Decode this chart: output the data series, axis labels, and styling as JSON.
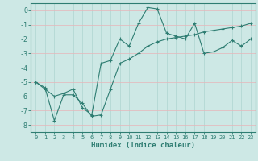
{
  "xlabel": "Humidex (Indice chaleur)",
  "background_color": "#cde8e5",
  "grid_color_h": "#e8b4b8",
  "grid_color_v": "#aed4d0",
  "line_color": "#2e7d72",
  "tick_color": "#2e7d72",
  "xlim": [
    -0.5,
    23.5
  ],
  "ylim": [
    -8.5,
    0.5
  ],
  "xticks": [
    0,
    1,
    2,
    3,
    4,
    5,
    6,
    7,
    8,
    9,
    10,
    11,
    12,
    13,
    14,
    15,
    16,
    17,
    18,
    19,
    20,
    21,
    22,
    23
  ],
  "yticks": [
    0,
    -1,
    -2,
    -3,
    -4,
    -5,
    -6,
    -7,
    -8
  ],
  "line1_x": [
    0,
    1,
    2,
    3,
    4,
    5,
    6,
    7,
    8,
    9,
    10,
    11,
    12,
    13,
    14,
    15,
    16,
    17,
    18,
    19,
    20,
    21,
    22,
    23
  ],
  "line1_y": [
    -5.0,
    -5.5,
    -6.0,
    -5.8,
    -5.5,
    -6.8,
    -7.3,
    -3.7,
    -3.5,
    -2.0,
    -2.5,
    -0.9,
    0.2,
    0.1,
    -1.6,
    -1.8,
    -2.0,
    -0.9,
    -3.0,
    -2.9,
    -2.6,
    -2.1,
    -2.5,
    -2.0
  ],
  "line2_x": [
    0,
    1,
    2,
    3,
    4,
    5,
    6,
    7,
    8,
    9,
    10,
    11,
    12,
    13,
    14,
    15,
    16,
    17,
    18,
    19,
    20,
    21,
    22,
    23
  ],
  "line2_y": [
    -5.0,
    -5.4,
    -7.7,
    -5.9,
    -5.9,
    -6.5,
    -7.4,
    -7.3,
    -5.5,
    -3.7,
    -3.4,
    -3.0,
    -2.5,
    -2.2,
    -2.0,
    -1.9,
    -1.8,
    -1.7,
    -1.5,
    -1.4,
    -1.3,
    -1.2,
    -1.1,
    -0.9
  ]
}
